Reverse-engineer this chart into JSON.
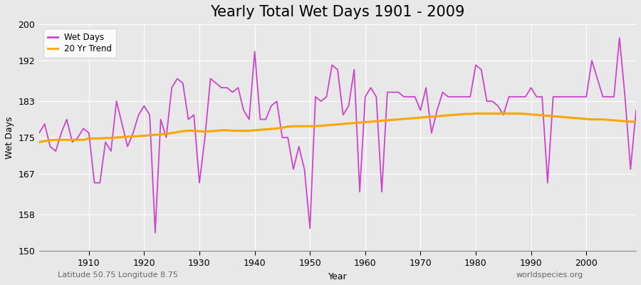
{
  "title": "Yearly Total Wet Days 1901 - 2009",
  "xlabel": "Year",
  "ylabel": "Wet Days",
  "lat_lon_label": "Latitude 50.75 Longitude 8.75",
  "watermark": "worldspecies.org",
  "ylim": [
    150,
    200
  ],
  "xlim": [
    1901,
    2009
  ],
  "yticks": [
    150,
    158,
    167,
    175,
    183,
    192,
    200
  ],
  "xticks": [
    1910,
    1920,
    1930,
    1940,
    1950,
    1960,
    1970,
    1980,
    1990,
    2000
  ],
  "wet_days_color": "#CC44CC",
  "trend_color": "#FFA500",
  "background_color": "#E8E8E8",
  "legend_entries": [
    "Wet Days",
    "20 Yr Trend"
  ],
  "years": [
    1901,
    1902,
    1903,
    1904,
    1905,
    1906,
    1907,
    1908,
    1909,
    1910,
    1911,
    1912,
    1913,
    1914,
    1915,
    1916,
    1917,
    1918,
    1919,
    1920,
    1921,
    1922,
    1923,
    1924,
    1925,
    1926,
    1927,
    1928,
    1929,
    1930,
    1931,
    1932,
    1933,
    1934,
    1935,
    1936,
    1937,
    1938,
    1939,
    1940,
    1941,
    1942,
    1943,
    1944,
    1945,
    1946,
    1947,
    1948,
    1949,
    1950,
    1951,
    1952,
    1953,
    1954,
    1955,
    1956,
    1957,
    1958,
    1959,
    1960,
    1961,
    1962,
    1963,
    1964,
    1965,
    1966,
    1967,
    1968,
    1969,
    1970,
    1971,
    1972,
    1973,
    1974,
    1975,
    1976,
    1977,
    1978,
    1979,
    1980,
    1981,
    1982,
    1983,
    1984,
    1985,
    1986,
    1987,
    1988,
    1989,
    1990,
    1991,
    1992,
    1993,
    1994,
    1995,
    1996,
    1997,
    1998,
    1999,
    2000,
    2001,
    2002,
    2003,
    2004,
    2005,
    2006,
    2007,
    2008,
    2009
  ],
  "wet_days": [
    176,
    178,
    173,
    172,
    176,
    179,
    174,
    175,
    177,
    176,
    165,
    165,
    174,
    172,
    183,
    178,
    173,
    176,
    180,
    182,
    180,
    154,
    179,
    175,
    186,
    188,
    187,
    179,
    180,
    165,
    175,
    188,
    187,
    186,
    186,
    185,
    186,
    181,
    179,
    194,
    179,
    179,
    182,
    183,
    175,
    175,
    168,
    173,
    168,
    155,
    184,
    183,
    184,
    191,
    190,
    180,
    182,
    190,
    163,
    184,
    186,
    184,
    163,
    185,
    185,
    185,
    184,
    184,
    184,
    181,
    186,
    176,
    181,
    185,
    184,
    184,
    184,
    184,
    184,
    191,
    190,
    183,
    183,
    182,
    180,
    184,
    184,
    184,
    184,
    186,
    184,
    184,
    165,
    184,
    184,
    184,
    184,
    184,
    184,
    184,
    192,
    188,
    184,
    184,
    184,
    197,
    184,
    168,
    181
  ],
  "trend": [
    174.0,
    174.2,
    174.4,
    174.5,
    174.5,
    174.5,
    174.5,
    174.5,
    174.5,
    174.8,
    174.8,
    174.8,
    174.9,
    174.9,
    175.0,
    175.1,
    175.2,
    175.2,
    175.3,
    175.4,
    175.5,
    175.6,
    175.7,
    175.8,
    176.0,
    176.2,
    176.4,
    176.5,
    176.5,
    176.4,
    176.3,
    176.4,
    176.5,
    176.6,
    176.6,
    176.5,
    176.5,
    176.5,
    176.5,
    176.6,
    176.7,
    176.8,
    176.9,
    177.0,
    177.2,
    177.4,
    177.5,
    177.5,
    177.5,
    177.5,
    177.5,
    177.6,
    177.7,
    177.8,
    177.9,
    178.0,
    178.1,
    178.2,
    178.3,
    178.4,
    178.5,
    178.6,
    178.7,
    178.8,
    178.9,
    179.0,
    179.1,
    179.2,
    179.3,
    179.4,
    179.5,
    179.6,
    179.7,
    179.8,
    179.9,
    180.0,
    180.1,
    180.2,
    180.2,
    180.3,
    180.3,
    180.3,
    180.3,
    180.3,
    180.3,
    180.3,
    180.3,
    180.3,
    180.2,
    180.1,
    180.0,
    179.9,
    179.8,
    179.7,
    179.6,
    179.5,
    179.4,
    179.3,
    179.2,
    179.1,
    179.0,
    179.0,
    179.0,
    178.9,
    178.8,
    178.7,
    178.6,
    178.5,
    178.5
  ]
}
